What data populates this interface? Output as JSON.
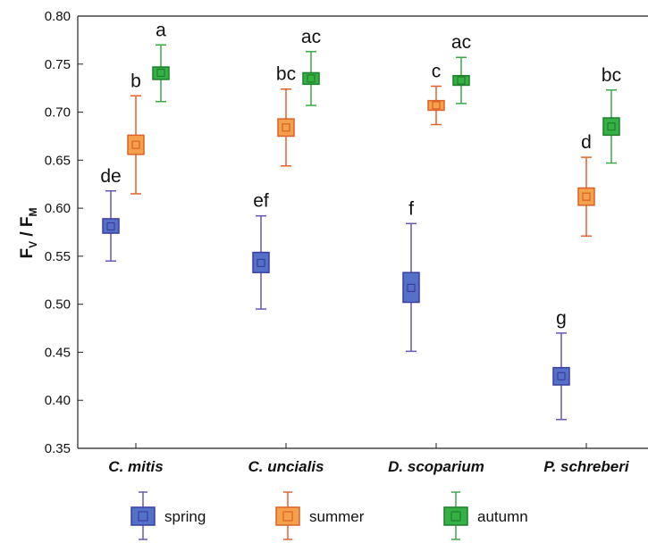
{
  "chart_data": {
    "type": "box",
    "ylabel": {
      "main": "F",
      "sub1": "V",
      "sep": " / F",
      "sub2": "M"
    },
    "ylim": [
      0.35,
      0.8
    ],
    "yticks": [
      "0.35",
      "0.40",
      "0.45",
      "0.50",
      "0.55",
      "0.60",
      "0.65",
      "0.70",
      "0.75",
      "0.80"
    ],
    "ytick_values": [
      0.35,
      0.4,
      0.45,
      0.5,
      0.55,
      0.6,
      0.65,
      0.7,
      0.75,
      0.8
    ],
    "categories": [
      "C. mitis",
      "C. uncialis",
      "D. scoparium",
      "P. schreberi"
    ],
    "series": [
      {
        "name": "spring",
        "color": "#4a5fc1",
        "fill": "#5470c8",
        "stroke": "#3a3f9a",
        "whisker": "#6a55b0",
        "points": [
          {
            "mean": 0.581,
            "box_low": 0.574,
            "box_high": 0.589,
            "whisker_low": 0.545,
            "whisker_high": 0.618,
            "label": "de"
          },
          {
            "mean": 0.543,
            "box_low": 0.533,
            "box_high": 0.554,
            "whisker_low": 0.495,
            "whisker_high": 0.592,
            "label": "ef"
          },
          {
            "mean": 0.517,
            "box_low": 0.502,
            "box_high": 0.533,
            "whisker_low": 0.451,
            "whisker_high": 0.584,
            "label": "f"
          },
          {
            "mean": 0.425,
            "box_low": 0.416,
            "box_high": 0.434,
            "whisker_low": 0.38,
            "whisker_high": 0.47,
            "label": "g"
          }
        ]
      },
      {
        "name": "summer",
        "color": "#f08a3c",
        "fill": "#f5a04a",
        "stroke": "#d9622a",
        "whisker": "#e8602e",
        "points": [
          {
            "mean": 0.666,
            "box_low": 0.656,
            "box_high": 0.676,
            "whisker_low": 0.615,
            "whisker_high": 0.717,
            "label": "b"
          },
          {
            "mean": 0.684,
            "box_low": 0.675,
            "box_high": 0.693,
            "whisker_low": 0.644,
            "whisker_high": 0.724,
            "label": "bc"
          },
          {
            "mean": 0.707,
            "box_low": 0.702,
            "box_high": 0.712,
            "whisker_low": 0.687,
            "whisker_high": 0.727,
            "label": "c"
          },
          {
            "mean": 0.612,
            "box_low": 0.603,
            "box_high": 0.621,
            "whisker_low": 0.571,
            "whisker_high": 0.653,
            "label": "d"
          }
        ]
      },
      {
        "name": "autumn",
        "color": "#2aa63a",
        "fill": "#34b044",
        "stroke": "#1f7f2c",
        "whisker": "#3aa84a",
        "points": [
          {
            "mean": 0.741,
            "box_low": 0.734,
            "box_high": 0.747,
            "whisker_low": 0.711,
            "whisker_high": 0.77,
            "label": "a"
          },
          {
            "mean": 0.735,
            "box_low": 0.729,
            "box_high": 0.741,
            "whisker_low": 0.707,
            "whisker_high": 0.763,
            "label": "ac"
          },
          {
            "mean": 0.733,
            "box_low": 0.728,
            "box_high": 0.738,
            "whisker_low": 0.709,
            "whisker_high": 0.757,
            "label": "ac"
          },
          {
            "mean": 0.685,
            "box_low": 0.676,
            "box_high": 0.694,
            "whisker_low": 0.647,
            "whisker_high": 0.723,
            "label": "bc"
          }
        ]
      }
    ],
    "legend": {
      "position": "bottom"
    },
    "grid": false
  }
}
